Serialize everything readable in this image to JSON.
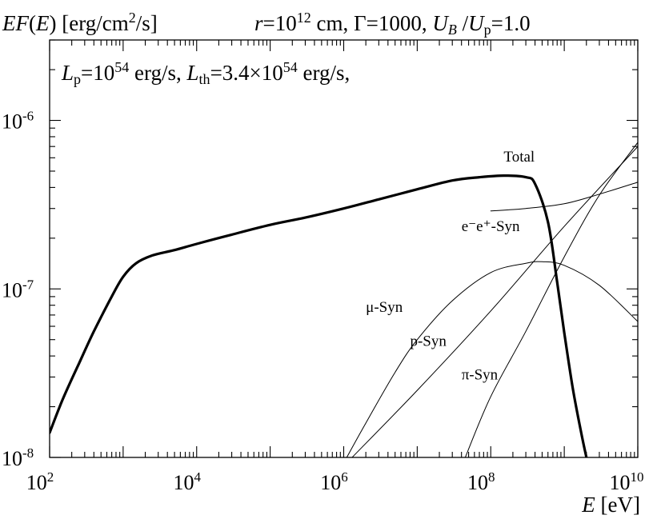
{
  "chart_data": {
    "type": "line",
    "title": {
      "ylabel_parts": [
        {
          "t": "EF",
          "i": true
        },
        {
          "t": "("
        },
        {
          "t": "E",
          "i": true
        },
        {
          "t": ") [erg/cm"
        },
        {
          "t": "2",
          "sup": true
        },
        {
          "t": "/s]"
        }
      ],
      "params_parts": [
        {
          "t": "r",
          "i": true
        },
        {
          "t": "=10"
        },
        {
          "t": "12",
          "sup": true
        },
        {
          "t": " cm, Γ=1000, "
        },
        {
          "t": "U",
          "i": true
        },
        {
          "t": "B",
          "sub": true,
          "i": true
        },
        {
          "t": " /"
        },
        {
          "t": "U",
          "i": true
        },
        {
          "t": "p",
          "sub": true
        },
        {
          "t": "=1.0"
        }
      ]
    },
    "annotation_parts": [
      {
        "t": "L",
        "i": true
      },
      {
        "t": "p",
        "sub": true
      },
      {
        "t": "=10"
      },
      {
        "t": "54",
        "sup": true
      },
      {
        "t": " erg/s, "
      },
      {
        "t": "L",
        "i": true
      },
      {
        "t": "th",
        "sub": true
      },
      {
        "t": "=3.4×10"
      },
      {
        "t": "54",
        "sup": true
      },
      {
        "t": " erg/s,"
      }
    ],
    "xlabel_parts": [
      {
        "t": "E",
        "i": true
      },
      {
        "t": " [eV]"
      }
    ],
    "x_scale": "log",
    "y_scale": "log",
    "xlim": [
      100,
      10000000000
    ],
    "ylim": [
      1e-08,
      3e-06
    ],
    "x_ticks": [
      {
        "base": "10",
        "exp": "2",
        "value": 100
      },
      {
        "base": "10",
        "exp": "4",
        "value": 10000
      },
      {
        "base": "10",
        "exp": "6",
        "value": 1000000
      },
      {
        "base": "10",
        "exp": "8",
        "value": 100000000
      },
      {
        "base": "10",
        "exp": "10",
        "value": 10000000000
      }
    ],
    "y_ticks": [
      {
        "base": "10",
        "exp": "-8",
        "value": 1e-08
      },
      {
        "base": "10",
        "exp": "-7",
        "value": 1e-07
      },
      {
        "base": "10",
        "exp": "-6",
        "value": 1e-06
      }
    ],
    "series": [
      {
        "name": "Total",
        "weight": "thick",
        "x": [
          100,
          150,
          250,
          400,
          700,
          1000,
          1500,
          2500,
          5000,
          10000,
          30000,
          100000,
          300000,
          1000000,
          3000000,
          10000000,
          30000000,
          70000000,
          150000000,
          300000000,
          400000000,
          600000000,
          800000000,
          1000000000,
          1300000000,
          1700000000,
          2000000000
        ],
        "y": [
          1.4e-08,
          2.2e-08,
          3.6e-08,
          5.6e-08,
          9e-08,
          1.18e-07,
          1.42e-07,
          1.58e-07,
          1.7e-07,
          1.85e-07,
          2.1e-07,
          2.4e-07,
          2.65e-07,
          3e-07,
          3.4e-07,
          3.9e-07,
          4.4e-07,
          4.6e-07,
          4.7e-07,
          4.6e-07,
          4.2e-07,
          2.5e-07,
          1.1e-07,
          5.5e-08,
          2.6e-08,
          1.4e-08,
          1e-08
        ]
      },
      {
        "name": "e⁻e⁺-Syn",
        "weight": "thin",
        "x": [
          100000000,
          300000000,
          1000000000,
          3000000000,
          10000000000
        ],
        "y": [
          2.9e-07,
          3e-07,
          3.2e-07,
          3.65e-07,
          4.3e-07
        ]
      },
      {
        "name": "μ-Syn",
        "weight": "thin",
        "x": [
          1100000,
          2000000,
          5000000,
          10000000,
          30000000,
          100000000,
          300000000,
          500000000,
          1000000000,
          3000000000,
          10000000000
        ],
        "y": [
          1e-08,
          1.6e-08,
          3.2e-08,
          5e-08,
          8.5e-08,
          1.25e-07,
          1.42e-07,
          1.45e-07,
          1.38e-07,
          1.05e-07,
          6.4e-08
        ]
      },
      {
        "name": "p-Syn",
        "weight": "thin",
        "x": [
          1300000,
          10000000,
          100000000,
          1000000000,
          10000000000
        ],
        "y": [
          1e-08,
          2.5e-08,
          7.4e-08,
          2.35e-07,
          7e-07
        ]
      },
      {
        "name": "π-Syn",
        "weight": "thin",
        "x": [
          45000000,
          100000000,
          300000000,
          1000000000,
          3000000000,
          10000000000
        ],
        "y": [
          1e-08,
          2.3e-08,
          5.6e-08,
          1.55e-07,
          3.6e-07,
          7.4e-07
        ]
      }
    ],
    "curve_labels": [
      {
        "series": "Total",
        "text": "Total",
        "x": 150000000,
        "y": 5.7e-07
      },
      {
        "series": "e⁻e⁺-Syn",
        "text": "e⁻e⁺-Syn",
        "x": 40000000,
        "y": 2.2e-07
      },
      {
        "series": "μ-Syn",
        "text": "μ-Syn",
        "x": 2000000,
        "y": 7.3e-08
      },
      {
        "series": "p-Syn",
        "text": "p-Syn",
        "x": 8000000,
        "y": 4.6e-08
      },
      {
        "series": "π-Syn",
        "text": "π-Syn",
        "x": 40000000,
        "y": 2.9e-08
      }
    ],
    "grid": false,
    "legend": "none"
  }
}
